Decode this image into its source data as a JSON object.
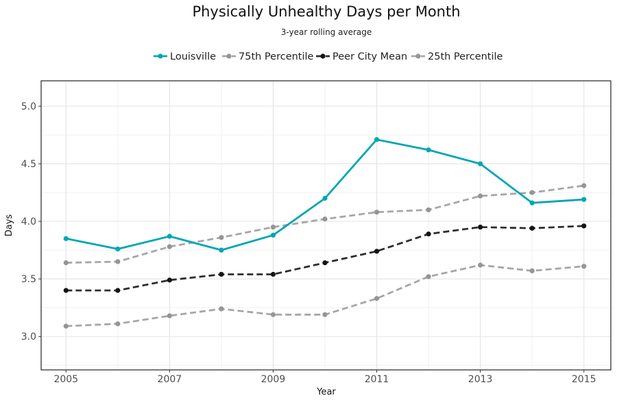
{
  "chart_data": {
    "type": "line",
    "title": "Physically Unhealthy Days per Month",
    "subtitle": "3-year rolling average",
    "xlabel": "Year",
    "ylabel": "Days",
    "xlim": [
      2004.52,
      2015.52
    ],
    "ylim": [
      2.71,
      5.22
    ],
    "x_ticks": [
      2005,
      2007,
      2009,
      2011,
      2013,
      2015
    ],
    "x_minor": [
      2006,
      2008,
      2010,
      2012,
      2014
    ],
    "y_ticks": [
      3.0,
      3.5,
      4.0,
      4.5,
      5.0
    ],
    "y_tick_labels": [
      "3.0",
      "3.5",
      "4.0",
      "4.5",
      "5.0"
    ],
    "y_minor": [
      2.75,
      3.25,
      3.75,
      4.25,
      4.75
    ],
    "grid": true,
    "legend_position": "top",
    "x": [
      2005,
      2006,
      2007,
      2008,
      2009,
      2010,
      2011,
      2012,
      2013,
      2014,
      2015
    ],
    "series": [
      {
        "name": "Louisville",
        "color": "#00a6b4",
        "dashed": false,
        "stroke_width": 2.8,
        "values": [
          3.85,
          3.76,
          3.87,
          3.75,
          3.88,
          4.2,
          4.71,
          4.62,
          4.5,
          4.16,
          4.19
        ]
      },
      {
        "name": "75th Percentile",
        "color": "#a6a6a6",
        "marker_color": "#959595",
        "dashed": true,
        "stroke_width": 2.8,
        "values": [
          3.64,
          3.65,
          3.78,
          3.86,
          3.95,
          4.02,
          4.08,
          4.1,
          4.22,
          4.25,
          4.31
        ]
      },
      {
        "name": "Peer City Mean",
        "color": "#2d2d2d",
        "marker_color": "#141414",
        "dashed": true,
        "stroke_width": 2.8,
        "values": [
          3.4,
          3.4,
          3.49,
          3.54,
          3.54,
          3.64,
          3.74,
          3.89,
          3.95,
          3.94,
          3.96
        ]
      },
      {
        "name": "25th Percentile",
        "color": "#a6a6a6",
        "marker_color": "#959595",
        "dashed": true,
        "stroke_width": 2.8,
        "values": [
          3.09,
          3.11,
          3.18,
          3.24,
          3.19,
          3.19,
          3.33,
          3.52,
          3.62,
          3.57,
          3.61
        ]
      }
    ]
  }
}
